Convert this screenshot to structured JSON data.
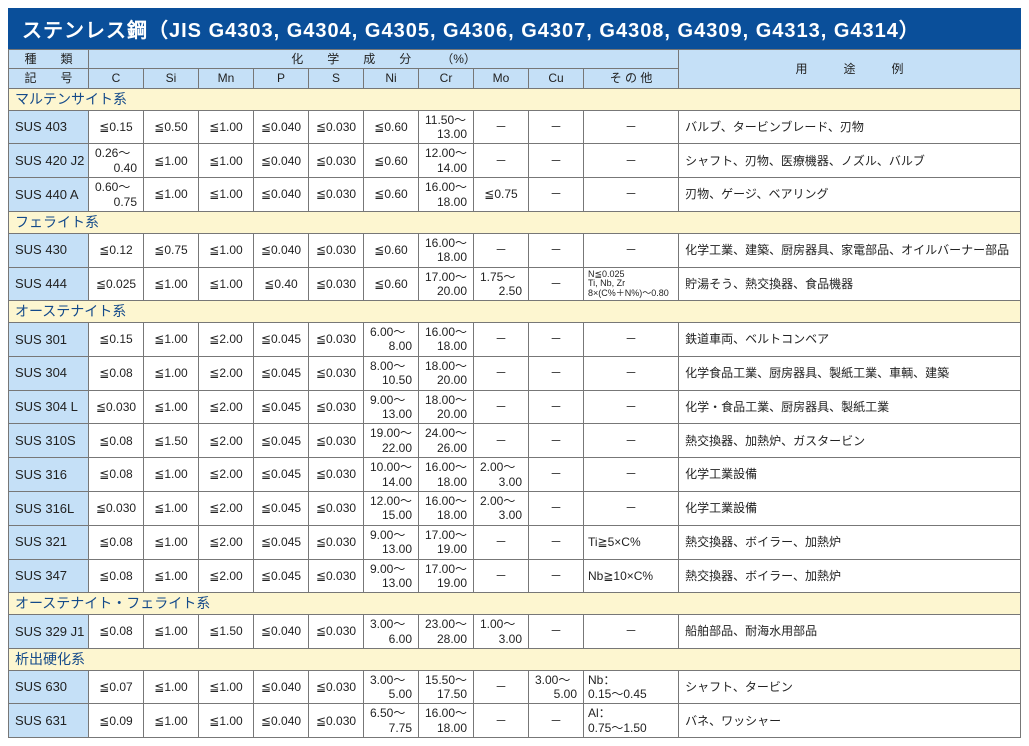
{
  "title": "ステンレス鋼（JIS G4303, G4304, G4305, G4306, G4307, G4308, G4309, G4313, G4314）",
  "colors": {
    "title_bg": "#0a4f9a",
    "title_fg": "#ffffff",
    "header_bg": "#c5e0f7",
    "group_bg": "#fdf6d0",
    "border": "#777777",
    "text": "#222222",
    "group_text": "#144a8a"
  },
  "header": {
    "type_label": "種　　類",
    "symbol_label": "記　　号",
    "chem_label": "化　　学　　成　　分　　　（%）",
    "usage_label": "用　　　途　　　例",
    "sub": [
      "C",
      "Si",
      "Mn",
      "P",
      "S",
      "Ni",
      "Cr",
      "Mo",
      "Cu",
      "そ の 他"
    ]
  },
  "groups": [
    {
      "name": "マルテンサイト系",
      "rows": [
        {
          "sym": "SUS 403",
          "C": "≦0.15",
          "Si": "≦0.50",
          "Mn": "≦1.00",
          "P": "≦0.040",
          "S": "≦0.030",
          "Ni": "≦0.60",
          "Cr": "11.50～\n13.00",
          "Mo": "－",
          "Cu": "－",
          "Other": "－",
          "Use": "バルブ、タービンブレード、刃物"
        },
        {
          "sym": "SUS 420 J2",
          "C": "0.26～\n0.40",
          "Si": "≦1.00",
          "Mn": "≦1.00",
          "P": "≦0.040",
          "S": "≦0.030",
          "Ni": "≦0.60",
          "Cr": "12.00～\n14.00",
          "Mo": "－",
          "Cu": "－",
          "Other": "－",
          "Use": "シャフト、刃物、医療機器、ノズル、バルブ"
        },
        {
          "sym": "SUS 440 A",
          "C": "0.60～\n0.75",
          "Si": "≦1.00",
          "Mn": "≦1.00",
          "P": "≦0.040",
          "S": "≦0.030",
          "Ni": "≦0.60",
          "Cr": "16.00～\n18.00",
          "Mo": "≦0.75",
          "Cu": "－",
          "Other": "－",
          "Use": "刃物、ゲージ、ベアリング"
        }
      ]
    },
    {
      "name": "フェライト系",
      "rows": [
        {
          "sym": "SUS 430",
          "C": "≦0.12",
          "Si": "≦0.75",
          "Mn": "≦1.00",
          "P": "≦0.040",
          "S": "≦0.030",
          "Ni": "≦0.60",
          "Cr": "16.00～\n18.00",
          "Mo": "－",
          "Cu": "－",
          "Other": "－",
          "Use": "化学工業、建築、厨房器具、家電部品、オイルバーナー部品"
        },
        {
          "sym": "SUS 444",
          "C": "≦0.025",
          "Si": "≦1.00",
          "Mn": "≦1.00",
          "P": "≦0.40",
          "S": "≦0.030",
          "Ni": "≦0.60",
          "Cr": "17.00～\n20.00",
          "Mo": "1.75～\n2.50",
          "Cu": "－",
          "Other": "N≦0.025\nTi, Nb, Zr\n8×(C%＋N%)～0.80",
          "OtherTiny": true,
          "Use": "貯湯そう、熱交換器、食品機器"
        }
      ]
    },
    {
      "name": "オーステナイト系",
      "rows": [
        {
          "sym": "SUS 301",
          "C": "≦0.15",
          "Si": "≦1.00",
          "Mn": "≦2.00",
          "P": "≦0.045",
          "S": "≦0.030",
          "Ni": "6.00～\n8.00",
          "Cr": "16.00～\n18.00",
          "Mo": "－",
          "Cu": "－",
          "Other": "－",
          "Use": "鉄道車両、ベルトコンベア"
        },
        {
          "sym": "SUS 304",
          "C": "≦0.08",
          "Si": "≦1.00",
          "Mn": "≦2.00",
          "P": "≦0.045",
          "S": "≦0.030",
          "Ni": "8.00～\n10.50",
          "Cr": "18.00～\n20.00",
          "Mo": "－",
          "Cu": "－",
          "Other": "－",
          "Use": "化学食品工業、厨房器具、製紙工業、車輌、建築"
        },
        {
          "sym": "SUS 304 L",
          "C": "≦0.030",
          "Si": "≦1.00",
          "Mn": "≦2.00",
          "P": "≦0.045",
          "S": "≦0.030",
          "Ni": "9.00～\n13.00",
          "Cr": "18.00～\n20.00",
          "Mo": "－",
          "Cu": "－",
          "Other": "－",
          "Use": "化学・食品工業、厨房器具、製紙工業"
        },
        {
          "sym": "SUS 310S",
          "C": "≦0.08",
          "Si": "≦1.50",
          "Mn": "≦2.00",
          "P": "≦0.045",
          "S": "≦0.030",
          "Ni": "19.00～\n22.00",
          "Cr": "24.00～\n26.00",
          "Mo": "－",
          "Cu": "－",
          "Other": "－",
          "Use": "熱交換器、加熱炉、ガスタービン"
        },
        {
          "sym": "SUS 316",
          "C": "≦0.08",
          "Si": "≦1.00",
          "Mn": "≦2.00",
          "P": "≦0.045",
          "S": "≦0.030",
          "Ni": "10.00～\n14.00",
          "Cr": "16.00～\n18.00",
          "Mo": "2.00～\n3.00",
          "Cu": "－",
          "Other": "－",
          "Use": "化学工業設備"
        },
        {
          "sym": "SUS 316L",
          "C": "≦0.030",
          "Si": "≦1.00",
          "Mn": "≦2.00",
          "P": "≦0.045",
          "S": "≦0.030",
          "Ni": "12.00～\n15.00",
          "Cr": "16.00～\n18.00",
          "Mo": "2.00～\n3.00",
          "Cu": "－",
          "Other": "－",
          "Use": "化学工業設備"
        },
        {
          "sym": "SUS 321",
          "C": "≦0.08",
          "Si": "≦1.00",
          "Mn": "≦2.00",
          "P": "≦0.045",
          "S": "≦0.030",
          "Ni": "9.00～\n13.00",
          "Cr": "17.00～\n19.00",
          "Mo": "－",
          "Cu": "－",
          "Other": "Ti≧5×C%",
          "Use": "熱交換器、ボイラー、加熱炉"
        },
        {
          "sym": "SUS 347",
          "C": "≦0.08",
          "Si": "≦1.00",
          "Mn": "≦2.00",
          "P": "≦0.045",
          "S": "≦0.030",
          "Ni": "9.00～\n13.00",
          "Cr": "17.00～\n19.00",
          "Mo": "－",
          "Cu": "－",
          "Other": "Nb≧10×C%",
          "Use": "熱交換器、ボイラー、加熱炉"
        }
      ]
    },
    {
      "name": "オーステナイト・フェライト系",
      "rows": [
        {
          "sym": "SUS 329 J1",
          "C": "≦0.08",
          "Si": "≦1.00",
          "Mn": "≦1.50",
          "P": "≦0.040",
          "S": "≦0.030",
          "Ni": "3.00～\n6.00",
          "Cr": "23.00～\n28.00",
          "Mo": "1.00～\n3.00",
          "Cu": "－",
          "Other": "－",
          "Use": "船舶部品、耐海水用部品"
        }
      ]
    },
    {
      "name": "析出硬化系",
      "rows": [
        {
          "sym": "SUS 630",
          "C": "≦0.07",
          "Si": "≦1.00",
          "Mn": "≦1.00",
          "P": "≦0.040",
          "S": "≦0.030",
          "Ni": "3.00～\n5.00",
          "Cr": "15.50～\n17.50",
          "Mo": "－",
          "Cu": "3.00～\n5.00",
          "Other": "Nb：\n0.15～0.45",
          "Use": "シャフト、タービン"
        },
        {
          "sym": "SUS 631",
          "C": "≦0.09",
          "Si": "≦1.00",
          "Mn": "≦1.00",
          "P": "≦0.040",
          "S": "≦0.030",
          "Ni": "6.50～\n7.75",
          "Cr": "16.00～\n18.00",
          "Mo": "－",
          "Cu": "－",
          "Other": "Al：\n0.75～1.50",
          "Use": "バネ、ワッシャー"
        }
      ]
    }
  ]
}
